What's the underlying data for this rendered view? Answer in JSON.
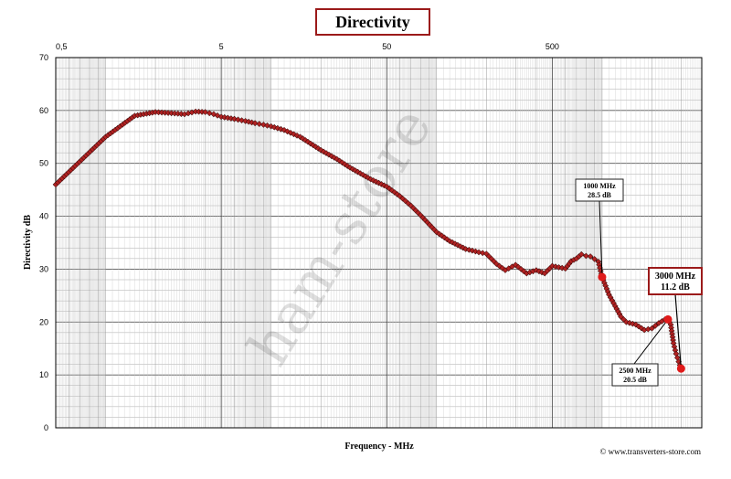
{
  "chart_data": {
    "type": "line",
    "title": "Directivity",
    "xlabel": "Frequency - MHz",
    "ylabel": "Directivity dB",
    "x_scale": "log",
    "xlim": [
      0.5,
      4000
    ],
    "ylim": [
      0,
      70
    ],
    "grid": true,
    "x_tick_labels": [
      "0,5",
      "5",
      "50",
      "500"
    ],
    "x_tick_values": [
      0.5,
      5,
      50,
      500
    ],
    "y_ticks": [
      0,
      10,
      20,
      30,
      40,
      50,
      60,
      70
    ],
    "series": [
      {
        "color": "#b22222",
        "x": [
          0.5,
          1,
          1.5,
          2,
          2.5,
          3,
          3.5,
          4,
          4.5,
          5,
          6,
          7,
          8,
          9,
          10,
          12,
          15,
          20,
          25,
          30,
          40,
          50,
          60,
          70,
          80,
          100,
          120,
          150,
          180,
          200,
          230,
          260,
          300,
          350,
          400,
          450,
          500,
          600,
          650,
          700,
          750,
          800,
          850,
          900,
          950,
          1000,
          1100,
          1200,
          1300,
          1400,
          1600,
          1800,
          2000,
          2200,
          2400,
          2500,
          2600,
          2700,
          2800,
          2900,
          3000
        ],
        "values": [
          46,
          55,
          59,
          59.7,
          59.5,
          59.3,
          59.8,
          59.7,
          59.3,
          58.8,
          58.4,
          58,
          57.6,
          57.3,
          57,
          56.3,
          55,
          52.5,
          50.8,
          49.2,
          47,
          45.6,
          43.8,
          42,
          40.2,
          37,
          35.3,
          33.8,
          33.2,
          32.9,
          31,
          29.8,
          30.8,
          29.2,
          29.8,
          29.2,
          30.6,
          30.1,
          31.5,
          32,
          32.8,
          32.5,
          32.4,
          31.9,
          31.4,
          28.5,
          25.2,
          23,
          21,
          20,
          19.5,
          18.5,
          18.8,
          19.8,
          20.5,
          20.5,
          19.5,
          16,
          14,
          12.5,
          11.2
        ]
      }
    ],
    "annotations": [
      {
        "freq": "1000 MHz",
        "value": "28.5 dB",
        "x": 1000,
        "y": 28.5
      },
      {
        "freq": "2500 MHz",
        "value": "20.5 dB",
        "x": 2500,
        "y": 20.5
      },
      {
        "freq": "3000 MHz",
        "value": "11.2 dB",
        "x": 3000,
        "y": 11.2
      }
    ],
    "credit": "© www.transverters-store.com",
    "watermark": "ham-store"
  }
}
